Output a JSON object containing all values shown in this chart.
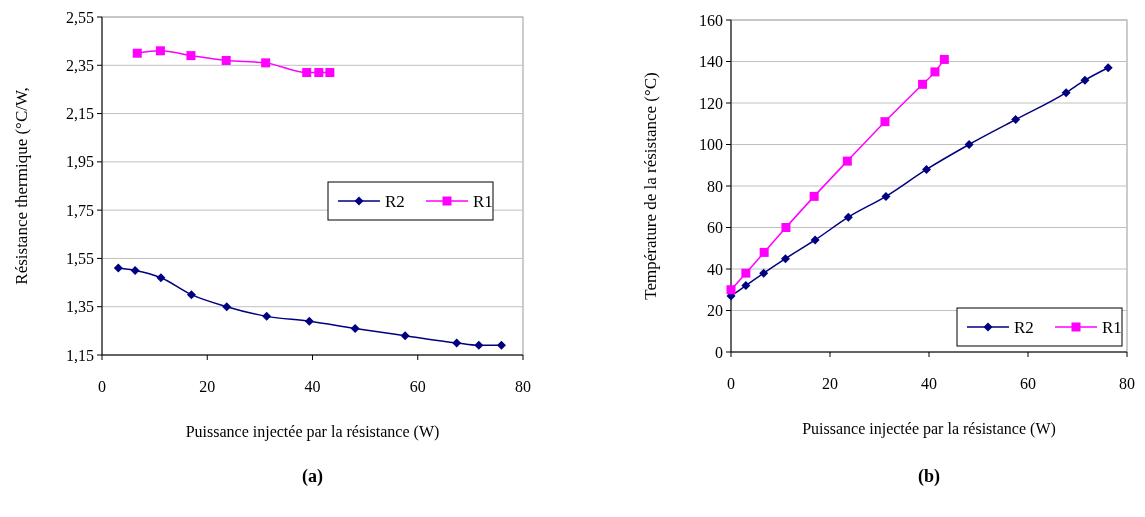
{
  "chart_data": [
    {
      "type": "line",
      "title": "(a)",
      "xlabel": "Puissance injectée par la résistance (W)",
      "ylabel": "Résistance thermique (°C/W,",
      "xlim": [
        0,
        80
      ],
      "xticks": [
        0,
        20,
        40,
        60,
        80
      ],
      "ylim": [
        1.15,
        2.55
      ],
      "yticks": [
        {
          "value": 1.15,
          "label": "1,15"
        },
        {
          "value": 1.35,
          "label": "1,35"
        },
        {
          "value": 1.55,
          "label": "1,55"
        },
        {
          "value": 1.75,
          "label": "1,75"
        },
        {
          "value": 1.95,
          "label": "1,95"
        },
        {
          "value": 2.15,
          "label": "2,15"
        },
        {
          "value": 2.35,
          "label": "2,35"
        },
        {
          "value": 2.55,
          "label": "2,55"
        }
      ],
      "grid": "y",
      "legend": "right",
      "series": [
        {
          "name": "R2",
          "color": "#000080",
          "marker": "diamond",
          "x": [
            3.1,
            6.3,
            11.2,
            17.0,
            23.7,
            31.3,
            39.4,
            48.1,
            57.6,
            67.4,
            71.6,
            75.9
          ],
          "values": [
            1.51,
            1.5,
            1.47,
            1.4,
            1.35,
            1.31,
            1.29,
            1.26,
            1.23,
            1.2,
            1.19,
            1.19
          ]
        },
        {
          "name": "R1",
          "color": "#ff00ff",
          "marker": "square",
          "x": [
            6.7,
            11.1,
            16.9,
            23.6,
            31.1,
            38.9,
            41.2,
            43.3
          ],
          "values": [
            2.4,
            2.41,
            2.39,
            2.37,
            2.36,
            2.32,
            2.32,
            2.32
          ]
        }
      ]
    },
    {
      "type": "line",
      "title": "(b)",
      "xlabel": "Puissance injectée par la résistance (W)",
      "ylabel": "Température de la résistance (°C)",
      "xlim": [
        0,
        80
      ],
      "xticks": [
        0,
        20,
        40,
        60,
        80
      ],
      "ylim": [
        0,
        160
      ],
      "yticks": [
        0,
        20,
        40,
        60,
        80,
        100,
        120,
        140,
        160
      ],
      "grid": "y",
      "legend": "bottom right",
      "series": [
        {
          "name": "R2",
          "color": "#000080",
          "marker": "diamond",
          "x": [
            0,
            3.0,
            6.6,
            11.0,
            17.0,
            23.7,
            31.3,
            39.5,
            48.1,
            57.5,
            67.7,
            71.5,
            76.2
          ],
          "values": [
            27,
            32,
            38,
            45,
            54,
            65,
            75,
            88,
            100,
            112,
            125,
            131,
            137
          ]
        },
        {
          "name": "R1",
          "color": "#ff00ff",
          "marker": "square",
          "x": [
            0,
            3.0,
            6.7,
            11.1,
            16.8,
            23.5,
            31.1,
            38.7,
            41.2,
            43.1
          ],
          "values": [
            30,
            38,
            48,
            60,
            75,
            92,
            111,
            129,
            135,
            141
          ]
        }
      ]
    }
  ]
}
